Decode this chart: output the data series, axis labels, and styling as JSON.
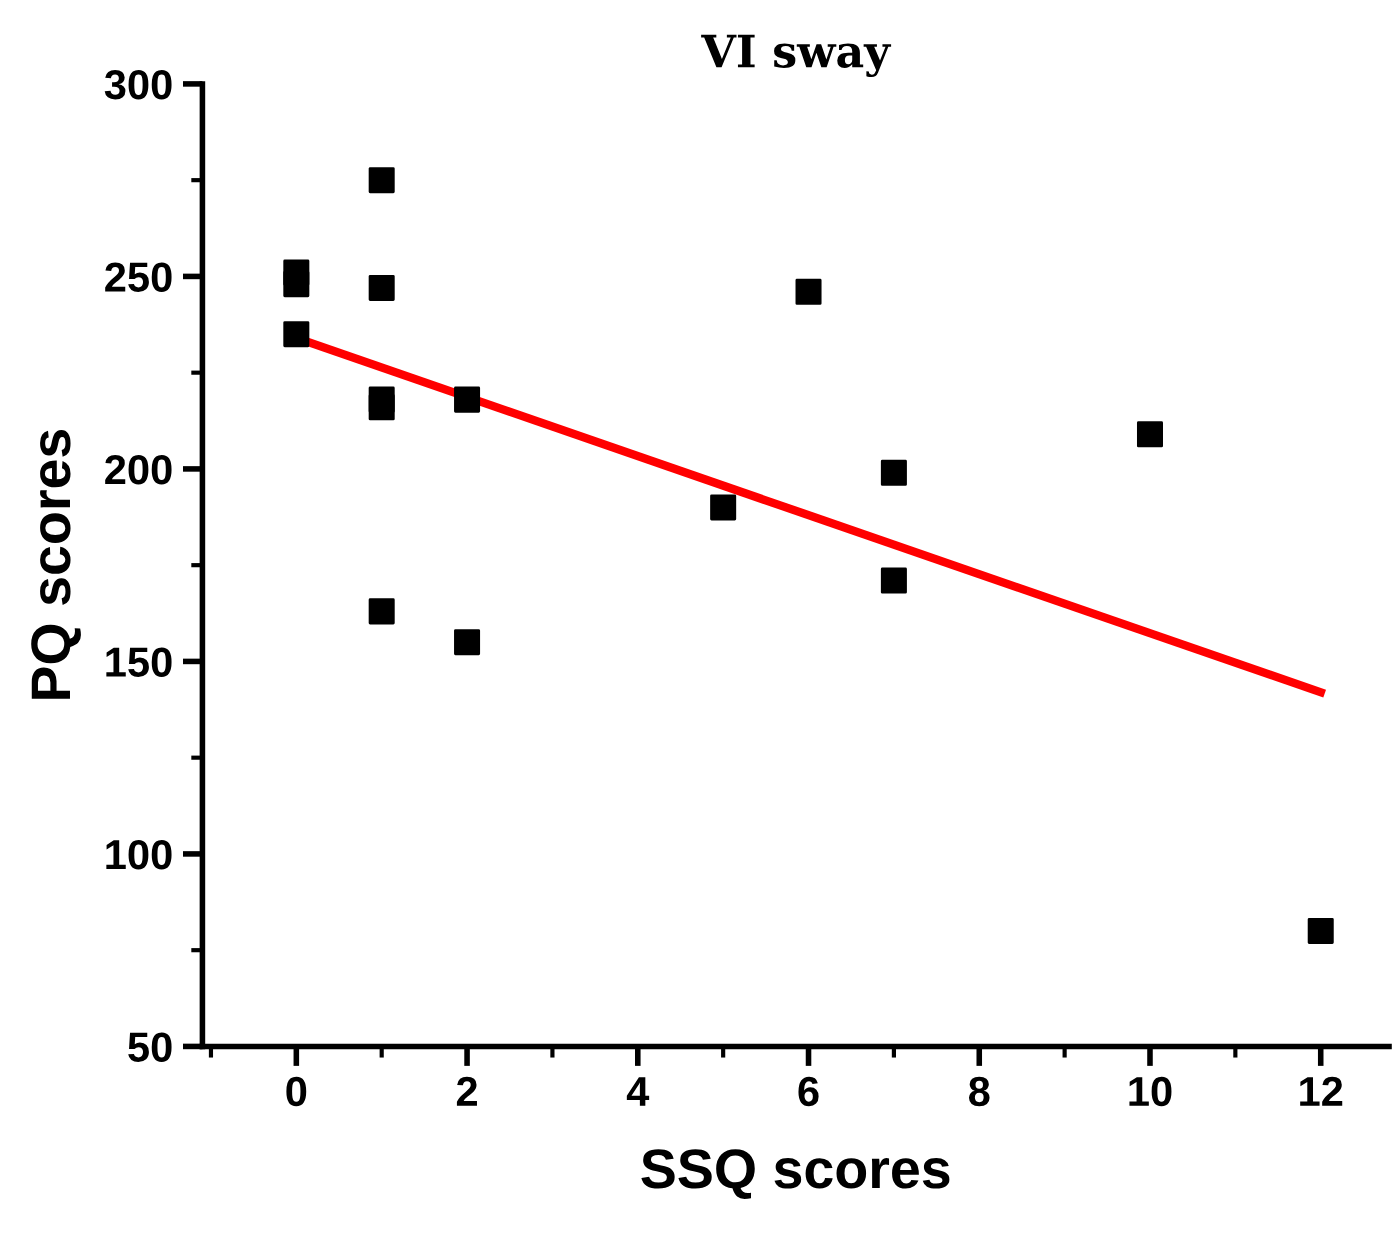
{
  "chart_data": {
    "type": "scatter",
    "title": "VI sway",
    "xlabel": "SSQ scores",
    "ylabel": "PQ scores",
    "xlim": [
      -1.1,
      12.8
    ],
    "ylim": [
      50,
      300
    ],
    "xticks": [
      0,
      2,
      4,
      6,
      8,
      10,
      12
    ],
    "yticks": [
      50,
      100,
      150,
      200,
      250,
      300
    ],
    "grid": false,
    "legend": false,
    "marker": "square",
    "series": [
      {
        "color": "#000000",
        "x": [
          0,
          0,
          0,
          1,
          1,
          1,
          1,
          1,
          2,
          2,
          5,
          6,
          7,
          7,
          10,
          12
        ],
        "values": [
          251,
          248,
          235,
          275,
          247,
          218,
          216,
          163,
          218,
          155,
          190,
          246,
          199,
          171,
          209,
          80
        ]
      },
      {
        "type": "line",
        "color": "#ff0000",
        "line_style": "solid",
        "marker": "none",
        "x": [
          0,
          12
        ],
        "values": [
          234,
          142
        ]
      }
    ]
  }
}
